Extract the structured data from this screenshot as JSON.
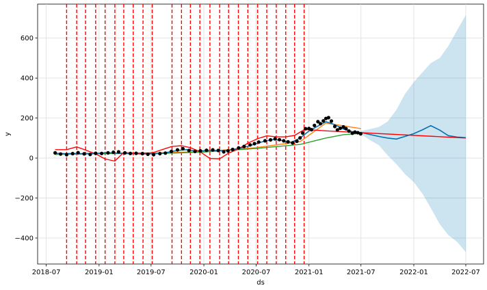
{
  "chart_data": {
    "type": "line",
    "title": "",
    "xlabel": "ds",
    "ylabel": "y",
    "xlim": [
      "2018-06-01",
      "2022-09-01"
    ],
    "ylim": [
      -530,
      770
    ],
    "grid": true,
    "x_ticks": [
      {
        "date": "2018-07-01",
        "label": "2018-07"
      },
      {
        "date": "2019-01-01",
        "label": "2019-01"
      },
      {
        "date": "2019-07-01",
        "label": "2019-07"
      },
      {
        "date": "2020-01-01",
        "label": "2020-01"
      },
      {
        "date": "2020-07-01",
        "label": "2020-07"
      },
      {
        "date": "2021-01-01",
        "label": "2021-01"
      },
      {
        "date": "2021-07-01",
        "label": "2021-07"
      },
      {
        "date": "2022-01-01",
        "label": "2022-01"
      },
      {
        "date": "2022-07-01",
        "label": "2022-07"
      }
    ],
    "y_ticks": [
      {
        "value": -400,
        "label": "−400"
      },
      {
        "value": -200,
        "label": "−200"
      },
      {
        "value": 0,
        "label": "0"
      },
      {
        "value": 200,
        "label": "200"
      },
      {
        "value": 400,
        "label": "400"
      },
      {
        "value": 600,
        "label": "600"
      }
    ],
    "changepoints": [
      "2018-09-10",
      "2018-10-15",
      "2018-11-15",
      "2018-12-20",
      "2019-01-22",
      "2019-02-25",
      "2019-03-28",
      "2019-04-30",
      "2019-06-03",
      "2019-07-05",
      "2019-09-12",
      "2019-10-15",
      "2019-11-15",
      "2019-12-18",
      "2020-01-22",
      "2020-02-25",
      "2020-03-27",
      "2020-04-30",
      "2020-06-02",
      "2020-07-06",
      "2020-08-07",
      "2020-09-09",
      "2020-10-12",
      "2020-11-12",
      "2020-12-15"
    ],
    "series": [
      {
        "name": "observed",
        "color": "#000000",
        "x": [
          "2018-08-01",
          "2018-08-20",
          "2018-09-10",
          "2018-10-01",
          "2018-10-20",
          "2018-11-10",
          "2018-12-01",
          "2018-12-20",
          "2019-01-10",
          "2019-02-01",
          "2019-02-20",
          "2019-03-10",
          "2019-04-01",
          "2019-04-20",
          "2019-05-10",
          "2019-06-01",
          "2019-06-20",
          "2019-07-10",
          "2019-08-01",
          "2019-08-20",
          "2019-09-10",
          "2019-10-01",
          "2019-10-20",
          "2019-11-10",
          "2019-12-01",
          "2019-12-20",
          "2020-01-10",
          "2020-02-01",
          "2020-02-20",
          "2020-03-10",
          "2020-03-25",
          "2020-04-10",
          "2020-05-01",
          "2020-05-20",
          "2020-06-10",
          "2020-06-25",
          "2020-07-10",
          "2020-08-01",
          "2020-08-20",
          "2020-09-05",
          "2020-09-20",
          "2020-10-05",
          "2020-10-20",
          "2020-11-05",
          "2020-11-20",
          "2020-12-01",
          "2020-12-10",
          "2020-12-20",
          "2021-01-01",
          "2021-01-10",
          "2021-01-20",
          "2021-02-01",
          "2021-02-10",
          "2021-02-20",
          "2021-03-01",
          "2021-03-10",
          "2021-03-20",
          "2021-04-01",
          "2021-04-10",
          "2021-04-20",
          "2021-05-01",
          "2021-05-10",
          "2021-05-20",
          "2021-06-01",
          "2021-06-10",
          "2021-06-20",
          "2021-06-30"
        ],
        "y": [
          26,
          20,
          17,
          22,
          27,
          21,
          18,
          24,
          23,
          26,
          29,
          31,
          26,
          23,
          24,
          22,
          19,
          17,
          22,
          25,
          33,
          41,
          47,
          38,
          33,
          36,
          39,
          41,
          38,
          31,
          36,
          43,
          51,
          58,
          66,
          72,
          80,
          86,
          91,
          96,
          92,
          86,
          81,
          76,
          84,
          101,
          125,
          147,
          148,
          142,
          163,
          182,
          172,
          186,
          198,
          202,
          185,
          158,
          141,
          149,
          156,
          147,
          135,
          124,
          130,
          127,
          121
        ]
      },
      {
        "name": "forecast",
        "color": "#0072b2",
        "x": [
          "2018-08-01",
          "2018-09-01",
          "2018-10-01",
          "2018-11-01",
          "2018-12-01",
          "2019-01-01",
          "2019-02-01",
          "2019-03-01",
          "2019-04-01",
          "2019-05-01",
          "2019-06-01",
          "2019-07-01",
          "2019-08-01",
          "2019-09-01",
          "2019-10-01",
          "2019-11-01",
          "2019-12-01",
          "2020-01-01",
          "2020-02-01",
          "2020-03-01",
          "2020-04-01",
          "2020-05-01",
          "2020-06-01",
          "2020-07-01",
          "2020-08-01",
          "2020-09-01",
          "2020-10-01",
          "2020-11-01",
          "2020-12-01",
          "2021-01-01",
          "2021-02-01",
          "2021-03-01",
          "2021-04-01",
          "2021-05-01",
          "2021-06-01",
          "2021-07-01",
          "2021-08-01",
          "2021-09-01",
          "2021-10-01",
          "2021-11-01",
          "2021-12-01",
          "2022-01-01",
          "2022-02-01",
          "2022-03-01",
          "2022-04-01",
          "2022-05-01",
          "2022-06-01",
          "2022-07-01"
        ],
        "y": [
          24,
          22,
          23,
          21,
          22,
          24,
          27,
          25,
          23,
          22,
          20,
          21,
          23,
          30,
          38,
          42,
          36,
          37,
          39,
          36,
          40,
          48,
          58,
          72,
          85,
          93,
          87,
          79,
          100,
          135,
          160,
          182,
          167,
          145,
          132,
          128,
          118,
          108,
          100,
          95,
          108,
          122,
          142,
          162,
          140,
          112,
          105,
          102
        ]
      },
      {
        "name": "upper",
        "color": "#0072b2",
        "x": [
          "2021-07-01",
          "2021-08-01",
          "2021-09-01",
          "2021-10-01",
          "2021-11-01",
          "2021-12-01",
          "2022-01-01",
          "2022-02-01",
          "2022-03-01",
          "2022-04-01",
          "2022-05-01",
          "2022-06-01",
          "2022-07-01"
        ],
        "y": [
          135,
          145,
          155,
          182,
          240,
          320,
          380,
          430,
          475,
          500,
          560,
          640,
          715
        ]
      },
      {
        "name": "lower",
        "color": "#0072b2",
        "x": [
          "2021-07-01",
          "2021-08-01",
          "2021-09-01",
          "2021-10-01",
          "2021-11-01",
          "2021-12-01",
          "2022-01-01",
          "2022-02-01",
          "2022-03-01",
          "2022-04-01",
          "2022-05-01",
          "2022-06-01",
          "2022-07-01"
        ],
        "y": [
          120,
          90,
          65,
          15,
          -30,
          -80,
          -120,
          -180,
          -250,
          -330,
          -385,
          -420,
          -470
        ]
      },
      {
        "name": "trend",
        "color": "#ff0000",
        "x": [
          "2018-08-01",
          "2018-09-10",
          "2018-10-15",
          "2018-11-15",
          "2018-12-20",
          "2019-01-22",
          "2019-02-25",
          "2019-03-28",
          "2019-04-30",
          "2019-06-03",
          "2019-07-05",
          "2019-09-12",
          "2019-10-15",
          "2019-11-15",
          "2019-12-18",
          "2020-01-22",
          "2020-02-25",
          "2020-03-27",
          "2020-04-30",
          "2020-06-02",
          "2020-07-06",
          "2020-08-07",
          "2020-09-09",
          "2020-10-12",
          "2020-11-12",
          "2020-12-15",
          "2021-01-20",
          "2021-03-01",
          "2022-07-01"
        ],
        "y": [
          42,
          42,
          56,
          40,
          21,
          -5,
          -15,
          28,
          24,
          24,
          26,
          58,
          62,
          52,
          32,
          -2,
          -4,
          25,
          45,
          74,
          97,
          111,
          106,
          106,
          113,
          142,
          140,
          136,
          100
        ]
      },
      {
        "name": "orange",
        "color": "#ff7f0e",
        "x": [
          "2018-08-01",
          "2019-02-01",
          "2019-08-01",
          "2020-01-01",
          "2020-07-01",
          "2020-12-01",
          "2021-03-01",
          "2021-07-01"
        ],
        "y": [
          21,
          25,
          26,
          33,
          52,
          82,
          175,
          147
        ]
      },
      {
        "name": "green",
        "color": "#2ca02c",
        "x": [
          "2018-08-01",
          "2019-02-01",
          "2019-08-01",
          "2020-01-01",
          "2020-07-01",
          "2020-12-01",
          "2021-03-01",
          "2021-05-01",
          "2021-07-01"
        ],
        "y": [
          18,
          22,
          23,
          30,
          48,
          68,
          100,
          117,
          123
        ]
      }
    ]
  }
}
